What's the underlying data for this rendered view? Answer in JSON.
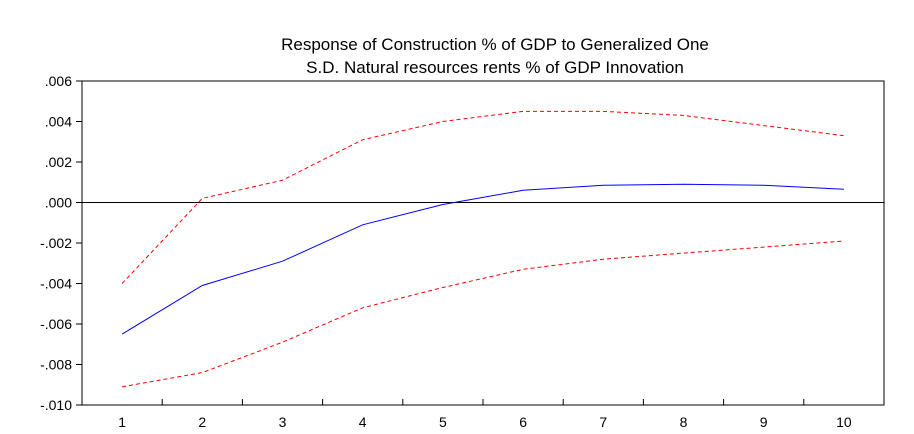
{
  "chart_data": {
    "type": "line",
    "title_lines": [
      "Response of Construction % of GDP to Generalized One",
      "S.D. Natural resources rents % of GDP Innovation"
    ],
    "xlabel": "",
    "ylabel": "",
    "categories": [
      "1",
      "2",
      "3",
      "4",
      "5",
      "6",
      "7",
      "8",
      "9",
      "10"
    ],
    "ylim": [
      -0.01,
      0.006
    ],
    "yticks": [
      0.006,
      0.004,
      0.002,
      0.0,
      -0.002,
      -0.004,
      -0.006,
      -0.008,
      -0.01
    ],
    "ytick_labels": [
      ".006",
      ".004",
      ".002",
      ".000",
      "-.002",
      "-.004",
      "-.006",
      "-.008",
      "-.010"
    ],
    "zero_line": true,
    "grid": false,
    "series": [
      {
        "role": "response",
        "color": "#0000ff",
        "dashed": false,
        "values": [
          -0.0065,
          -0.0041,
          -0.0029,
          -0.0011,
          -0.0001,
          0.0006,
          0.00085,
          0.0009,
          0.00085,
          0.00065
        ]
      },
      {
        "role": "upper-band",
        "color": "#ff0000",
        "dashed": true,
        "values": [
          -0.004,
          0.0002,
          0.0011,
          0.0031,
          0.004,
          0.0045,
          0.0045,
          0.0043,
          0.0038,
          0.0033
        ]
      },
      {
        "role": "lower-band",
        "color": "#ff0000",
        "dashed": true,
        "values": [
          -0.0091,
          -0.0084,
          -0.0069,
          -0.0052,
          -0.0042,
          -0.0033,
          -0.0028,
          -0.0025,
          -0.0022,
          -0.0019
        ]
      }
    ]
  }
}
